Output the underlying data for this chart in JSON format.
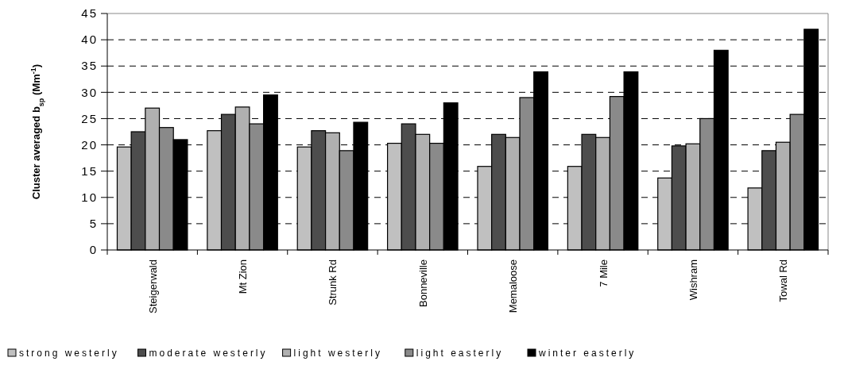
{
  "chart_data": {
    "type": "bar",
    "ylabel": "Cluster averaged b$_{sp}$ (Mm$^{-1}$)",
    "categories": [
      "Steigerwald",
      "Mt Zion",
      "Strunk Rd",
      "Bonneville",
      "Memaloose",
      "7 Mile",
      "Wishram",
      "Towal Rd"
    ],
    "series": [
      {
        "name": "strong westerly",
        "color": "#c0c0c0",
        "values": [
          19.6,
          22.7,
          19.6,
          20.3,
          15.9,
          15.9,
          13.7,
          11.8
        ]
      },
      {
        "name": "moderate westerly",
        "color": "#4d4d4d",
        "values": [
          22.5,
          25.8,
          22.7,
          24,
          22,
          22,
          19.8,
          18.9
        ]
      },
      {
        "name": "light westerly",
        "color": "#b0b0b0",
        "values": [
          27,
          27.2,
          22.3,
          22,
          21.4,
          21.4,
          20.2,
          20.5
        ]
      },
      {
        "name": "light easterly",
        "color": "#8a8a8a",
        "values": [
          23.3,
          24,
          18.9,
          20.3,
          29,
          29.2,
          25,
          25.8
        ]
      },
      {
        "name": "winter easterly",
        "color": "#000000",
        "values": [
          21,
          29.5,
          24.3,
          28,
          33.9,
          33.9,
          38,
          42
        ]
      }
    ],
    "ylim": [
      0,
      45
    ],
    "yticks": [
      0,
      5,
      10,
      15,
      20,
      25,
      30,
      35,
      40,
      45
    ],
    "grid": "y",
    "legend": "bottom"
  }
}
